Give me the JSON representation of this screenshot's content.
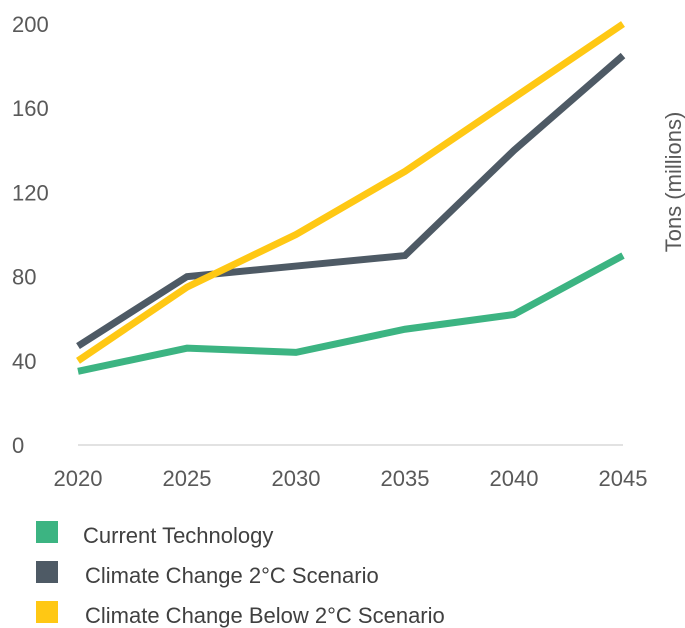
{
  "chart_data": {
    "type": "line",
    "x": [
      2020,
      2025,
      2030,
      2035,
      2040,
      2045
    ],
    "series": [
      {
        "name": "Current Technology",
        "color": "#3CB482",
        "values": [
          35,
          46,
          44,
          55,
          62,
          90
        ]
      },
      {
        "name": "Climate Change 2°C Scenario",
        "color": "#4E5A65",
        "values": [
          47,
          80,
          85,
          90,
          140,
          185
        ]
      },
      {
        "name": "Climate Change Below 2°C Scenario",
        "color": "#FFC814",
        "values": [
          40,
          75,
          100,
          130,
          165,
          200
        ]
      }
    ],
    "yticks": [
      0,
      40,
      80,
      120,
      160,
      200
    ],
    "ylim": [
      0,
      200
    ],
    "xlim": [
      2020,
      2045
    ],
    "ylabel": "Tons (millions)",
    "xlabel": "",
    "title": "",
    "grid": false,
    "legend_position": "bottom-left"
  }
}
